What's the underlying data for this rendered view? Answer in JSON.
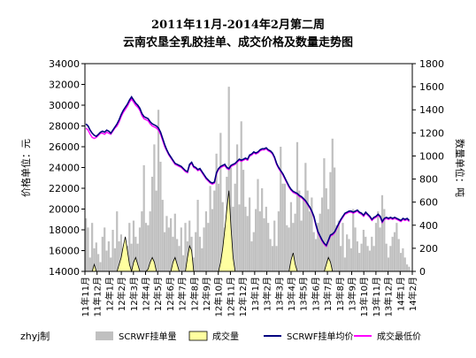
{
  "chart_data": {
    "type": "line",
    "title": "2011年11月-2014年2月第二周",
    "subtitle": "云南农垦全乳胶挂单、成交价格及数量走势图",
    "ylabel_left": "价格单位：元",
    "ylabel_right": "数量单位：吨",
    "credit": "zhyj制",
    "ylim_left": [
      14000,
      34000
    ],
    "ylim_right": [
      0,
      1800
    ],
    "yticks_left": [
      14000,
      16000,
      18000,
      20000,
      22000,
      24000,
      26000,
      28000,
      30000,
      32000,
      34000
    ],
    "yticks_right": [
      0,
      200,
      400,
      600,
      800,
      1000,
      1200,
      1400,
      1600,
      1800
    ],
    "x_ticks": [
      "11年11月",
      "11年12月",
      "12年1月",
      "12年2月",
      "12年3月",
      "12年4月",
      "12年5月",
      "12年6月",
      "12年7月",
      "12年8月",
      "12年9月",
      "12年10月",
      "12年11月",
      "12年12月",
      "13年1月",
      "13年2月",
      "13年3月",
      "13年4月",
      "13年5月",
      "13年6月",
      "13年7月",
      "13年8月",
      "13年9月",
      "13年10月",
      "13年11月",
      "13年12月",
      "14年1月",
      "14年2月"
    ],
    "grid": false,
    "legend_position": "bottom",
    "series": [
      {
        "name": "SCRWF挂单量",
        "kind": "bar",
        "axis": "right",
        "color": "#c0c0c0",
        "values": [
          460,
          380,
          120,
          420,
          200,
          250,
          150,
          80,
          300,
          380,
          180,
          260,
          120,
          360,
          200,
          520,
          260,
          320,
          200,
          180,
          220,
          420,
          240,
          440,
          300,
          240,
          380,
          520,
          920,
          420,
          400,
          520,
          820,
          1100,
          700,
          1400,
          950,
          620,
          340,
          480,
          380,
          460,
          300,
          500,
          280,
          220,
          380,
          140,
          420,
          260,
          440,
          300,
          120,
          340,
          620,
          300,
          200,
          380,
          520,
          420,
          740,
          540,
          700,
          1020,
          760,
          1200,
          600,
          380,
          820,
          1600,
          900,
          560,
          760,
          1100,
          580,
          1300,
          880,
          560,
          480,
          640,
          260,
          340,
          540,
          800,
          520,
          720,
          460,
          560,
          420,
          280,
          220,
          440,
          220,
          520,
          1080,
          760,
          760,
          400,
          380,
          600,
          420,
          500,
          1120,
          700,
          440,
          640,
          940,
          700,
          520,
          640,
          340,
          280,
          420,
          500,
          640,
          980,
          720,
          540,
          860,
          1150,
          900,
          400,
          440,
          220,
          420,
          120,
          320,
          280,
          200,
          540,
          380,
          260,
          160,
          240,
          360,
          300,
          220,
          180,
          300,
          220,
          420,
          520,
          380,
          660,
          540,
          240,
          120,
          220,
          300,
          340,
          420,
          280,
          160,
          200,
          120,
          60,
          40,
          0
        ]
      },
      {
        "name": "成交量",
        "kind": "area",
        "axis": "right",
        "color": "#ffffa0",
        "values": [
          0,
          0,
          0,
          0,
          60,
          0,
          0,
          0,
          0,
          0,
          0,
          0,
          0,
          0,
          0,
          0,
          60,
          120,
          220,
          300,
          180,
          60,
          0,
          80,
          120,
          60,
          0,
          0,
          0,
          0,
          20,
          80,
          120,
          80,
          0,
          0,
          0,
          0,
          0,
          0,
          0,
          0,
          80,
          120,
          60,
          0,
          0,
          0,
          0,
          120,
          220,
          180,
          0,
          0,
          0,
          0,
          0,
          0,
          0,
          0,
          0,
          0,
          0,
          0,
          0,
          80,
          200,
          360,
          540,
          700,
          380,
          120,
          0,
          0,
          0,
          0,
          0,
          0,
          0,
          0,
          0,
          0,
          0,
          0,
          0,
          0,
          0,
          0,
          0,
          0,
          0,
          0,
          0,
          0,
          0,
          0,
          0,
          0,
          0,
          100,
          160,
          60,
          0,
          0,
          0,
          0,
          0,
          0,
          0,
          0,
          0,
          0,
          0,
          0,
          0,
          0,
          60,
          120,
          80,
          0,
          0,
          0,
          0,
          0,
          0,
          0,
          0,
          0,
          0,
          0,
          0,
          0,
          0,
          0,
          0,
          0,
          0,
          0,
          0,
          0,
          0,
          0,
          0,
          0,
          0,
          0,
          0,
          0,
          0,
          0,
          0,
          0,
          0,
          0,
          0,
          0,
          0,
          0,
          0
        ]
      },
      {
        "name": "SCRWF挂单均价",
        "kind": "line",
        "axis": "left",
        "color": "#000080",
        "values": [
          28200,
          28000,
          27600,
          27300,
          27100,
          27000,
          27200,
          27400,
          27500,
          27400,
          27600,
          27500,
          27300,
          27600,
          27900,
          28200,
          28600,
          29100,
          29500,
          29800,
          30100,
          30500,
          30800,
          30500,
          30200,
          30000,
          29700,
          29200,
          28900,
          28800,
          28700,
          28400,
          28200,
          28100,
          28000,
          27800,
          27400,
          26800,
          26200,
          25700,
          25300,
          25000,
          24700,
          24400,
          24300,
          24200,
          24100,
          23900,
          23700,
          23600,
          24300,
          24500,
          24100,
          24000,
          23800,
          23900,
          23600,
          23300,
          23000,
          22800,
          22600,
          22500,
          22600,
          23500,
          23900,
          24100,
          24200,
          24300,
          24000,
          23900,
          24200,
          24300,
          24400,
          24600,
          24800,
          24700,
          24800,
          24900,
          24800,
          25200,
          25300,
          25500,
          25400,
          25500,
          25700,
          25800,
          25800,
          25900,
          25700,
          25600,
          25400,
          25000,
          24400,
          24000,
          23700,
          23400,
          23000,
          22600,
          22200,
          21900,
          21700,
          21600,
          21500,
          21300,
          21200,
          21000,
          20800,
          20500,
          20200,
          19800,
          19300,
          18500,
          17800,
          17400,
          17000,
          16700,
          16500,
          17000,
          17500,
          17600,
          17800,
          18200,
          18600,
          19000,
          19300,
          19600,
          19700,
          19800,
          19800,
          19700,
          19800,
          19900,
          19700,
          19600,
          19400,
          19700,
          19500,
          19300,
          19000,
          19200,
          19300,
          19500,
          19300,
          18800,
          19100,
          19200,
          19100,
          19200,
          19100,
          19200,
          19100,
          19000,
          18900,
          19100,
          19000,
          19100,
          18900
        ]
      },
      {
        "name": "成交最低价",
        "kind": "line",
        "axis": "left",
        "color": "#ff00ff",
        "values": [
          27800,
          27600,
          27200,
          26900,
          26800,
          26900,
          27100,
          27300,
          27300,
          27200,
          27400,
          27300,
          27200,
          27500,
          27800,
          28000,
          28400,
          28900,
          29300,
          29600,
          29900,
          30300,
          30600,
          30300,
          30000,
          29800,
          29500,
          29000,
          28700,
          28600,
          28500,
          28200,
          28000,
          27900,
          27800,
          27600,
          27200,
          26600,
          26000,
          25600,
          25200,
          24900,
          24600,
          24300,
          24200,
          24100,
          24000,
          23800,
          23600,
          23500,
          24200,
          24400,
          24000,
          23900,
          23700,
          23800,
          23500,
          23200,
          22900,
          22700,
          22500,
          22400,
          22500,
          23400,
          23800,
          24000,
          24100,
          24200,
          23900,
          23800,
          24100,
          24200,
          24300,
          24500,
          24700,
          24600,
          24700,
          24800,
          24700,
          25100,
          25200,
          25400,
          25300,
          25400,
          25600,
          25700,
          25700,
          25800,
          25600,
          25500,
          25300,
          24900,
          24300,
          23900,
          23600,
          23300,
          22900,
          22500,
          22100,
          21800,
          21600,
          21500,
          21400,
          21200,
          21100,
          20900,
          20700,
          20400,
          20100,
          19700,
          19200,
          18400,
          17700,
          17300,
          16900,
          16600,
          16400,
          16900,
          17400,
          17500,
          17700,
          18100,
          18500,
          18900,
          19200,
          19500,
          19600,
          19700,
          19700,
          19600,
          19700,
          19800,
          19600,
          19500,
          19300,
          19600,
          19400,
          19200,
          18900,
          19100,
          19200,
          19400,
          19200,
          18700,
          19000,
          19100,
          19000,
          19100,
          19000,
          19100,
          19000,
          18900,
          18800,
          19000,
          18900,
          19000,
          18800
        ]
      }
    ]
  }
}
